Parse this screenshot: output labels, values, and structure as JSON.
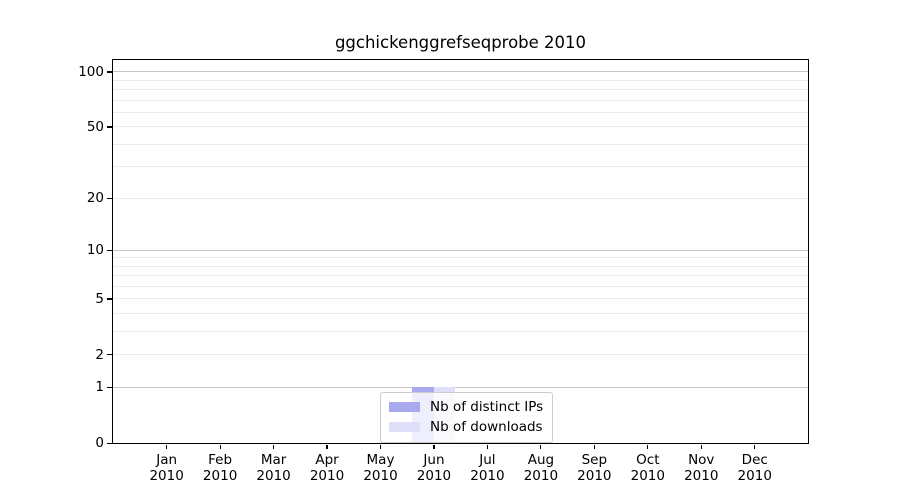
{
  "chart_data": {
    "type": "bar",
    "title": "ggchickenggrefseqprobe 2010",
    "categories": [
      "Jan 2010",
      "Feb 2010",
      "Mar 2010",
      "Apr 2010",
      "May 2010",
      "Jun 2010",
      "Jul 2010",
      "Aug 2010",
      "Sep 2010",
      "Oct 2010",
      "Nov 2010",
      "Dec 2010"
    ],
    "series": [
      {
        "name": "Nb of distinct IPs",
        "color": "#a9a9ee",
        "values": [
          0,
          0,
          0,
          0,
          0,
          1,
          0,
          0,
          0,
          0,
          0,
          0
        ]
      },
      {
        "name": "Nb of downloads",
        "color": "#dedef8",
        "values": [
          0,
          0,
          0,
          0,
          0,
          1,
          0,
          0,
          0,
          0,
          0,
          0
        ]
      }
    ],
    "xlabel": "",
    "ylabel": "",
    "yscale": "log1p",
    "ylim": [
      0,
      116
    ],
    "yticks": [
      0,
      1,
      2,
      5,
      10,
      20,
      50,
      100
    ],
    "gridlines_major": [
      1,
      10,
      100
    ],
    "gridlines_minor": [
      2,
      3,
      4,
      5,
      6,
      7,
      8,
      9,
      20,
      30,
      40,
      50,
      60,
      70,
      80,
      90
    ],
    "grid": true,
    "legend_position": "lower center",
    "bar_group_width_ratio": 0.8
  },
  "colors": {
    "background": "#ffffff",
    "spine": "#000000",
    "grid_major": "#c6c6c6",
    "grid_minor": "#ececec",
    "text": "#000000",
    "legend_border": "#cccccc"
  }
}
